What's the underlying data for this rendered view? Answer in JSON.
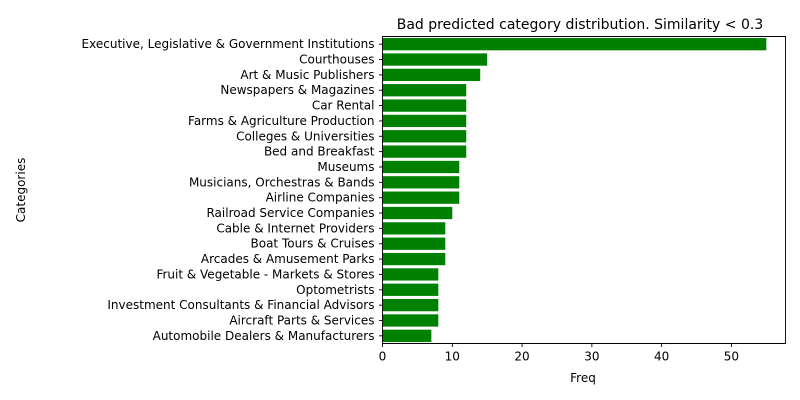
{
  "chart_data": {
    "type": "bar",
    "orientation": "horizontal",
    "title": "Bad predicted category distribution. Similarity < 0.3",
    "xlabel": "Freq",
    "ylabel": "Categories",
    "xlim": [
      0,
      57.75
    ],
    "xticks": [
      0,
      10,
      20,
      30,
      40,
      50
    ],
    "grid": false,
    "bar_color": "#008000",
    "categories": [
      "Executive, Legislative & Government Institutions",
      "Courthouses",
      "Art & Music Publishers",
      "Newspapers & Magazines",
      "Car Rental",
      "Farms & Agriculture Production",
      "Colleges & Universities",
      "Bed and Breakfast",
      "Museums",
      "Musicians, Orchestras & Bands",
      "Airline Companies",
      "Railroad Service Companies",
      "Cable & Internet Providers",
      "Boat Tours & Cruises",
      "Arcades & Amusement Parks",
      "Fruit & Vegetable - Markets & Stores",
      "Optometrists",
      "Investment Consultants & Financial Advisors",
      "Aircraft Parts & Services",
      "Automobile Dealers & Manufacturers"
    ],
    "values": [
      55,
      15,
      14,
      12,
      12,
      12,
      12,
      12,
      11,
      11,
      11,
      10,
      9,
      9,
      9,
      8,
      8,
      8,
      8,
      7
    ]
  }
}
